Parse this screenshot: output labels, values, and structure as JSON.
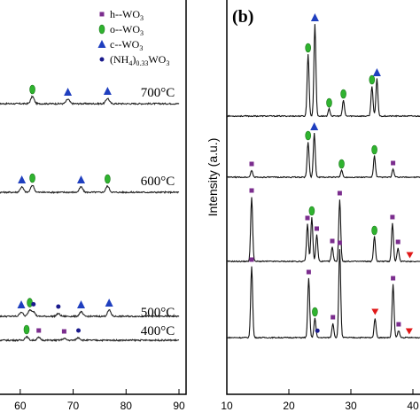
{
  "chart_data": [
    {
      "type": "line",
      "panel": "a",
      "xlim": [
        54,
        90
      ],
      "x_ticks": [
        "60",
        "70",
        "80",
        "90"
      ],
      "legend": [
        {
          "marker": "square",
          "color": "#7b2d8e",
          "label": "h--WO",
          "sub": "3"
        },
        {
          "marker": "ellipse",
          "color": "#2fb32f",
          "label": "o--WO",
          "sub": "3"
        },
        {
          "marker": "triangle",
          "color": "#1f3fbf",
          "label": "c--WO",
          "sub": "3"
        },
        {
          "marker": "circle",
          "color": "#1a1a8c",
          "label": "(NH",
          "sub": "4",
          "label2": ")",
          "sub2": "0.33",
          "label3": "WO",
          "sub3": "3"
        }
      ],
      "series": [
        {
          "name": "700°C",
          "temp_value": "700",
          "temp_unit": "°C",
          "peaks": [
            [
              62.3,
              8
            ],
            [
              69,
              5
            ],
            [
              76.5,
              6
            ]
          ],
          "markers": [
            {
              "x": 62.3,
              "type": "ellipse"
            },
            {
              "x": 69,
              "type": "triangle"
            },
            {
              "x": 76.5,
              "type": "triangle"
            }
          ]
        },
        {
          "name": "600°C",
          "temp_value": "600",
          "temp_unit": "°C",
          "peaks": [
            [
              60.3,
              6
            ],
            [
              62.3,
              8
            ],
            [
              71.5,
              6
            ],
            [
              76.5,
              7
            ]
          ],
          "markers": [
            {
              "x": 60.3,
              "type": "triangle"
            },
            {
              "x": 62.3,
              "type": "ellipse"
            },
            {
              "x": 71.5,
              "type": "triangle"
            },
            {
              "x": 76.5,
              "type": "ellipse"
            }
          ]
        },
        {
          "name": "500°C",
          "temp_value": "500",
          "temp_unit": "°C",
          "peaks": [
            [
              60.2,
              5
            ],
            [
              61.8,
              7
            ],
            [
              62.5,
              5
            ],
            [
              67.2,
              3
            ],
            [
              71.5,
              5
            ],
            [
              76.8,
              7
            ]
          ],
          "markers": [
            {
              "x": 60.2,
              "type": "triangle"
            },
            {
              "x": 61.8,
              "type": "ellipse"
            },
            {
              "x": 62.5,
              "type": "circle"
            },
            {
              "x": 67.2,
              "type": "circle"
            },
            {
              "x": 71.5,
              "type": "triangle"
            },
            {
              "x": 76.8,
              "type": "triangle"
            }
          ]
        },
        {
          "name": "400°C",
          "temp_value": "400",
          "temp_unit": "°C",
          "peaks": [
            [
              61.2,
              4
            ],
            [
              63.5,
              3
            ],
            [
              68.3,
              2
            ],
            [
              71,
              3
            ]
          ],
          "markers": [
            {
              "x": 55.2,
              "type": "ellipse"
            },
            {
              "x": 61.2,
              "type": "ellipse"
            },
            {
              "x": 63.5,
              "type": "square"
            },
            {
              "x": 68.3,
              "type": "square"
            },
            {
              "x": 71,
              "type": "circle"
            }
          ]
        }
      ]
    },
    {
      "type": "line",
      "panel": "b",
      "panel_label": "(b)",
      "ylabel": "Intensity (a.u.)",
      "xlim": [
        10,
        45
      ],
      "x_ticks": [
        "10",
        "20",
        "30",
        "40"
      ],
      "series": [
        {
          "peaks": [
            [
              23.1,
              70
            ],
            [
              24.2,
              104
            ],
            [
              26.5,
              8
            ],
            [
              28.8,
              18
            ],
            [
              33.4,
              34
            ],
            [
              34.2,
              42
            ],
            [
              41.8,
              16
            ]
          ],
          "markers": [
            {
              "x": 23.1,
              "type": "ellipse"
            },
            {
              "x": 24.2,
              "type": "triangle"
            },
            {
              "x": 26.5,
              "type": "ellipse"
            },
            {
              "x": 28.8,
              "type": "ellipse"
            },
            {
              "x": 33.4,
              "type": "ellipse"
            },
            {
              "x": 34.2,
              "type": "triangle"
            },
            {
              "x": 41.8,
              "type": "ellipse"
            }
          ]
        },
        {
          "peaks": [
            [
              14,
              8
            ],
            [
              23.1,
              40
            ],
            [
              24.1,
              50
            ],
            [
              28.5,
              8
            ],
            [
              33.8,
              24
            ],
            [
              36.8,
              9
            ],
            [
              42.2,
              12
            ]
          ],
          "markers": [
            {
              "x": 14,
              "type": "square"
            },
            {
              "x": 23.1,
              "type": "ellipse"
            },
            {
              "x": 24.1,
              "type": "triangle"
            },
            {
              "x": 28.5,
              "type": "ellipse"
            },
            {
              "x": 33.8,
              "type": "ellipse"
            },
            {
              "x": 36.8,
              "type": "square"
            },
            {
              "x": 42.2,
              "type": "ellipse"
            }
          ]
        },
        {
          "peaks": [
            [
              14,
              73
            ],
            [
              23,
              42
            ],
            [
              23.7,
              50
            ],
            [
              24.5,
              30
            ],
            [
              27,
              16
            ],
            [
              28.2,
              70
            ],
            [
              33.8,
              28
            ],
            [
              36.7,
              43
            ],
            [
              37.6,
              15
            ],
            [
              42.2,
              10
            ]
          ],
          "markers": [
            {
              "x": 14,
              "type": "square"
            },
            {
              "x": 23,
              "type": "square"
            },
            {
              "x": 23.7,
              "type": "ellipse"
            },
            {
              "x": 24.5,
              "type": "square"
            },
            {
              "x": 27,
              "type": "square"
            },
            {
              "x": 28.2,
              "type": "square"
            },
            {
              "x": 33.8,
              "type": "ellipse"
            },
            {
              "x": 36.7,
              "type": "square"
            },
            {
              "x": 37.6,
              "type": "square"
            },
            {
              "x": 39.5,
              "type": "down-triangle"
            },
            {
              "x": 42.2,
              "type": "ellipse"
            }
          ]
        },
        {
          "peaks": [
            [
              14,
              81
            ],
            [
              23.2,
              67
            ],
            [
              24.2,
              22
            ],
            [
              27.1,
              16
            ],
            [
              28.2,
              100
            ],
            [
              33.9,
              22
            ],
            [
              36.8,
              60
            ],
            [
              37.7,
              8
            ],
            [
              42.1,
              8
            ]
          ],
          "markers": [
            {
              "x": 14,
              "type": "square"
            },
            {
              "x": 23.2,
              "type": "square"
            },
            {
              "x": 24.2,
              "type": "ellipse"
            },
            {
              "x": 24.6,
              "type": "circle"
            },
            {
              "x": 27.1,
              "type": "square"
            },
            {
              "x": 28.2,
              "type": "square"
            },
            {
              "x": 33.9,
              "type": "down-triangle"
            },
            {
              "x": 36.8,
              "type": "square"
            },
            {
              "x": 37.7,
              "type": "square"
            },
            {
              "x": 39.4,
              "type": "down-triangle"
            },
            {
              "x": 42.1,
              "type": "ellipse"
            }
          ]
        }
      ]
    }
  ]
}
